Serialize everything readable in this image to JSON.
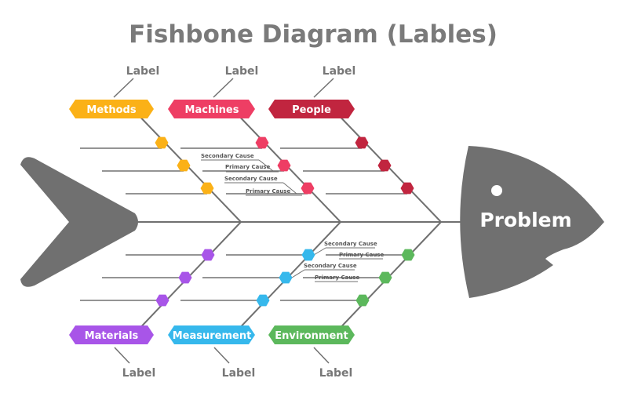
{
  "title": "Fishbone Diagram (Lables)",
  "problem": "Problem",
  "colors": {
    "fish": "#707070",
    "spine": "#707070",
    "methods": "#FBB117",
    "machines": "#EE3E64",
    "people": "#C1253F",
    "materials": "#A855E8",
    "measurement": "#36B8EC",
    "environment": "#5CB85C"
  },
  "categories": {
    "methods": "Methods",
    "machines": "Machines",
    "people": "People",
    "materials": "Materials",
    "measurement": "Measurement",
    "environment": "Environment"
  },
  "labels": {
    "top_methods": "Label",
    "top_machines": "Label",
    "top_people": "Label",
    "bottom_materials": "Label",
    "bottom_measurement": "Label",
    "bottom_environment": "Label"
  },
  "cause_labels": {
    "machines_1": "Secondary Cause",
    "machines_2": "Primary Cause",
    "machines_3": "Secondary Cause",
    "machines_4": "Primary Cause",
    "environment_1": "Secondary Cause",
    "environment_2": "Primary Cause",
    "environment_3": "Secondary Cause",
    "environment_4": "Primary Cause"
  }
}
